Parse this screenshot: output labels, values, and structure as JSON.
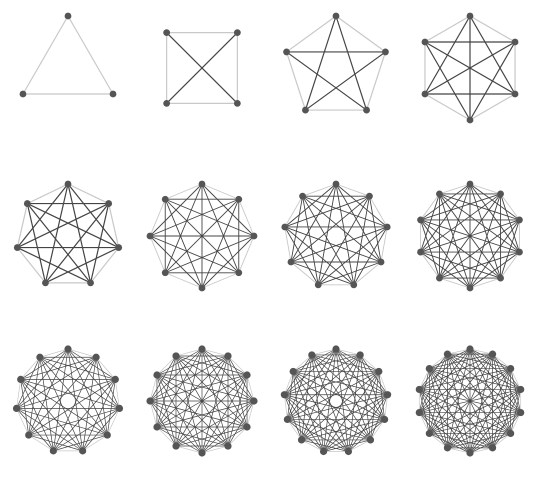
{
  "colors": {
    "background": "#ffffff",
    "edge": "#444444",
    "faint_edge": "#c8c8c8",
    "node": "#555555"
  },
  "graphs": [
    {
      "nodes": 3
    },
    {
      "nodes": 4
    },
    {
      "nodes": 5
    },
    {
      "nodes": 6
    },
    {
      "nodes": 7
    },
    {
      "nodes": 8
    },
    {
      "nodes": 9
    },
    {
      "nodes": 10
    },
    {
      "nodes": 11
    },
    {
      "nodes": 12
    },
    {
      "nodes": 13
    },
    {
      "nodes": 14
    }
  ]
}
